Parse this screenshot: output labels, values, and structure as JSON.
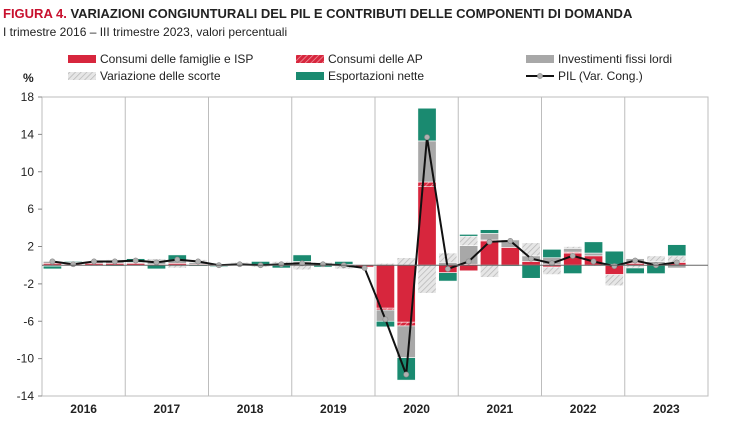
{
  "figure": {
    "label": "FIGURA 4.",
    "title": "VARIAZIONI CONGIUNTURALI DEL PIL E CONTRIBUTI DELLE COMPONENTI DI DOMANDA",
    "subtitle": "I trimestre 2016 – III trimestre 2023, valori percentuali"
  },
  "chart_data": {
    "type": "bar",
    "stacked": true,
    "unit_label": "%",
    "ylim": [
      -14,
      18
    ],
    "yticks": [
      18,
      14,
      10,
      6,
      2,
      -2,
      -6,
      -10,
      -14
    ],
    "year_labels": [
      "2016",
      "2017",
      "2018",
      "2019",
      "2020",
      "2021",
      "2022",
      "2023"
    ],
    "quarters_per_year": 4,
    "grid": "vertical year separators and zero line",
    "legend_position": "top",
    "categories": [
      "2016Q1",
      "2016Q2",
      "2016Q3",
      "2016Q4",
      "2017Q1",
      "2017Q2",
      "2017Q3",
      "2017Q4",
      "2018Q1",
      "2018Q2",
      "2018Q3",
      "2018Q4",
      "2019Q1",
      "2019Q2",
      "2019Q3",
      "2019Q4",
      "2020Q1",
      "2020Q2",
      "2020Q3",
      "2020Q4",
      "2021Q1",
      "2021Q2",
      "2021Q3",
      "2021Q4",
      "2022Q1",
      "2022Q2",
      "2022Q3",
      "2022Q4",
      "2023Q1",
      "2023Q2",
      "2023Q3"
    ],
    "series": [
      {
        "name": "Consumi delle famiglie e ISP",
        "color": "#d7263d",
        "pattern": "solid",
        "values": [
          0.2,
          0.1,
          0.2,
          0.2,
          0.2,
          0.1,
          0.2,
          0.1,
          0.1,
          0.0,
          0.0,
          0.1,
          0.0,
          0.1,
          0.0,
          -0.2,
          -4.6,
          -6.1,
          8.4,
          -0.8,
          -0.6,
          2.6,
          1.9,
          0.4,
          -0.2,
          1.3,
          1.0,
          -1.0,
          0.2,
          0.2,
          0.3
        ]
      },
      {
        "name": "Consumi delle AP",
        "color": "#d7263d",
        "pattern": "hatched",
        "values": [
          0.0,
          0.0,
          0.0,
          0.0,
          0.0,
          0.0,
          0.0,
          0.0,
          0.0,
          0.0,
          0.0,
          0.0,
          0.0,
          0.0,
          0.0,
          0.0,
          -0.2,
          -0.4,
          0.5,
          0.0,
          0.1,
          0.1,
          0.0,
          0.0,
          0.1,
          0.1,
          0.0,
          0.0,
          0.1,
          0.0,
          0.0
        ]
      },
      {
        "name": "Investimenti fissi lordi",
        "color": "#a8a8a8",
        "pattern": "solid",
        "values": [
          0.2,
          0.1,
          0.2,
          0.3,
          0.1,
          0.3,
          0.3,
          0.2,
          0.0,
          0.2,
          0.0,
          0.1,
          0.4,
          0.0,
          0.1,
          0.0,
          -1.2,
          -3.4,
          4.4,
          0.3,
          2.0,
          0.7,
          0.8,
          0.6,
          0.7,
          0.4,
          0.3,
          0.1,
          0.4,
          0.2,
          -0.3
        ]
      },
      {
        "name": "Variazione delle scorte",
        "color": "#c8c8c8",
        "pattern": "dotted",
        "values": [
          -0.1,
          0.1,
          -0.1,
          0.1,
          0.0,
          0.3,
          -0.3,
          0.3,
          -0.1,
          0.1,
          -0.2,
          0.2,
          -0.5,
          0.2,
          -0.4,
          0.0,
          0.2,
          0.8,
          -3.0,
          1.0,
          1.0,
          -1.3,
          0.0,
          1.4,
          -0.8,
          0.2,
          -0.1,
          -1.2,
          -0.3,
          0.6,
          0.7
        ]
      },
      {
        "name": "Esportazioni nette",
        "color": "#1a8a70",
        "pattern": "solid",
        "values": [
          -0.3,
          0.1,
          0.0,
          -0.1,
          0.4,
          -0.4,
          0.6,
          -0.1,
          -0.1,
          0.0,
          0.4,
          -0.3,
          0.7,
          -0.2,
          0.3,
          0.0,
          -0.6,
          -2.4,
          3.5,
          -0.9,
          0.2,
          0.4,
          -0.1,
          -1.4,
          0.9,
          -0.9,
          1.2,
          1.4,
          -0.6,
          -0.9,
          1.2
        ]
      },
      {
        "name": "PIL (Var. Cong.)",
        "color": "#111111",
        "type": "line",
        "values": [
          0.4,
          0.1,
          0.4,
          0.4,
          0.5,
          0.3,
          0.6,
          0.4,
          0.0,
          0.1,
          0.0,
          0.1,
          0.2,
          0.1,
          0.0,
          -0.3,
          -5.8,
          -11.7,
          13.7,
          -0.4,
          0.4,
          2.5,
          2.6,
          0.7,
          0.2,
          1.0,
          0.4,
          -0.1,
          0.5,
          0.0,
          0.3
        ]
      }
    ]
  }
}
